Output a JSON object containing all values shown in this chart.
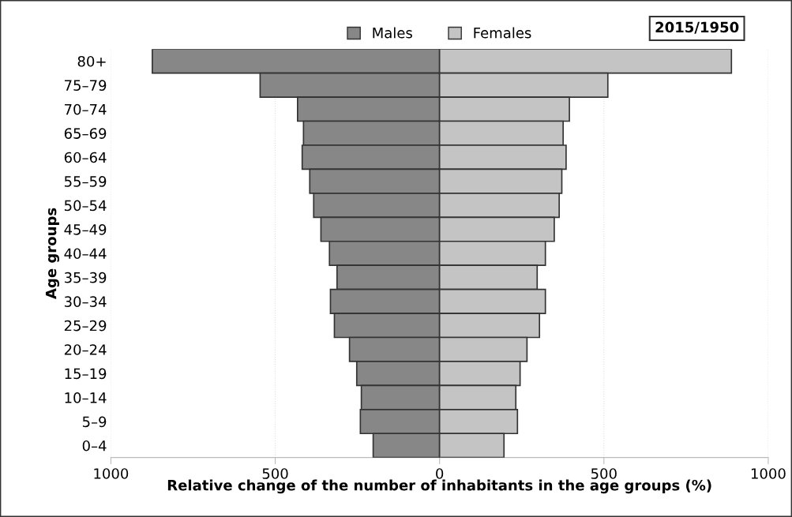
{
  "chart_data": {
    "type": "bar",
    "orientation": "horizontal",
    "stacked": true,
    "xlabel": "Relative change of the number of inhabitants in the age groups (%)",
    "ylabel": "Age groups",
    "annotations": [
      "2015/1950"
    ],
    "categories": [
      "80+",
      "75–79",
      "70–74",
      "65–69",
      "60–64",
      "55–59",
      "50–54",
      "45–49",
      "40–44",
      "35–39",
      "30–34",
      "25–29",
      "20–24",
      "15–19",
      "10–14",
      "5–9",
      "0–4"
    ],
    "series": [
      {
        "name": "Males",
        "color": "#878787",
        "values": [
          -874,
          -546,
          -432,
          -414,
          -418,
          -395,
          -383,
          -361,
          -335,
          -312,
          -332,
          -320,
          -274,
          -252,
          -238,
          -241,
          -202
        ]
      },
      {
        "name": "Females",
        "color": "#c4c4c4",
        "values": [
          888,
          512,
          395,
          376,
          385,
          372,
          364,
          349,
          322,
          297,
          322,
          304,
          266,
          245,
          232,
          237,
          196
        ]
      }
    ],
    "xlim": [
      -1000,
      1000
    ],
    "xticks": [
      {
        "value": -1000,
        "label": "1000"
      },
      {
        "value": -500,
        "label": "500"
      },
      0,
      500,
      1000
    ],
    "grid": "x",
    "legend": "top"
  }
}
